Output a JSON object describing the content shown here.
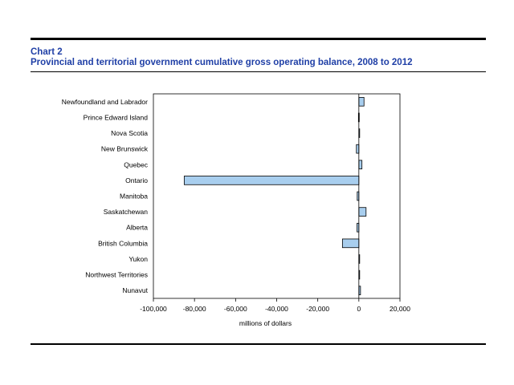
{
  "header": {
    "chart_number": "Chart 2",
    "title": "Provincial and territorial government cumulative gross operating balance, 2008 to 2012"
  },
  "colors": {
    "bar_fill": "#a8ceee",
    "bar_stroke": "#000000",
    "title": "#1f3fa6"
  },
  "chart_data": {
    "type": "bar",
    "orientation": "horizontal",
    "title": "Provincial and territorial government cumulative gross operating balance, 2008 to 2012",
    "xlabel": "millions of dollars",
    "ylabel": "",
    "xlim": [
      -100000,
      20000
    ],
    "xticks": [
      -100000,
      -80000,
      -60000,
      -40000,
      -20000,
      0,
      20000
    ],
    "xtick_labels": [
      "-100,000",
      "-80,000",
      "-60,000",
      "-40,000",
      "-20,000",
      "0",
      "20,000"
    ],
    "categories": [
      "Newfoundland and Labrador",
      "Prince Edward Island",
      "Nova Scotia",
      "New Brunswick",
      "Quebec",
      "Ontario",
      "Manitoba",
      "Saskatchewan",
      "Alberta",
      "British Columbia",
      "Yukon",
      "Northwest Territories",
      "Nunavut"
    ],
    "values": [
      2500,
      -200,
      300,
      -1200,
      1500,
      -85000,
      -800,
      3500,
      -900,
      -8000,
      200,
      300,
      800
    ],
    "grid": false
  }
}
